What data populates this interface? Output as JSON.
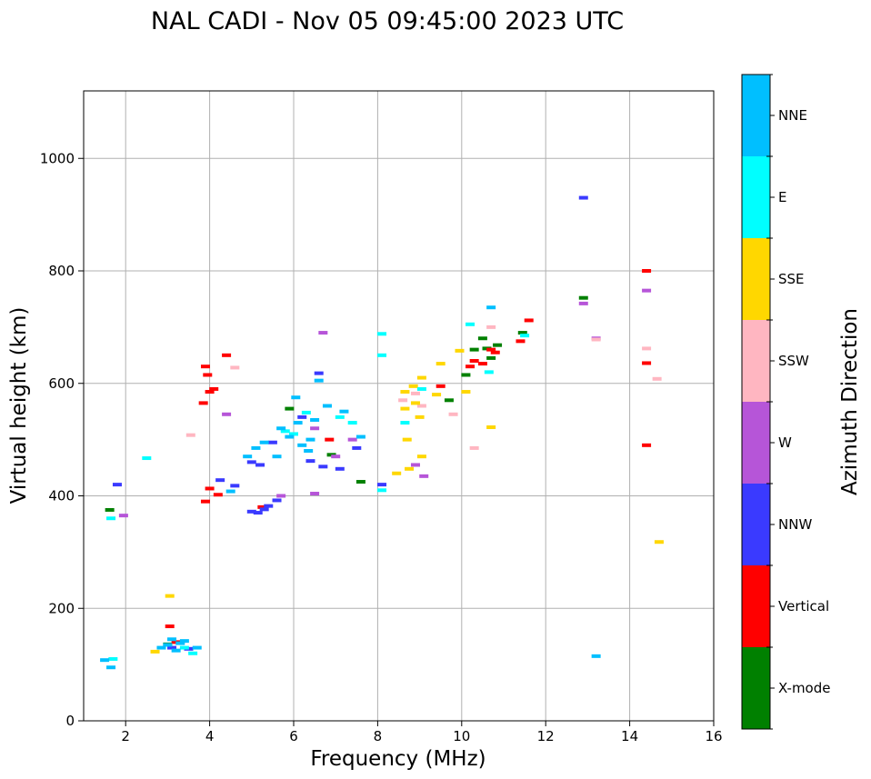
{
  "chart_data": {
    "type": "scatter",
    "title": "NAL CADI - Nov 05 09:45:00 2023 UTC",
    "xlabel": "Frequency (MHz)",
    "ylabel": "Virtual height (km)",
    "xlim": [
      1,
      16
    ],
    "ylim": [
      0,
      1120
    ],
    "xticks": [
      2,
      4,
      6,
      8,
      10,
      12,
      14,
      16
    ],
    "yticks": [
      0,
      200,
      400,
      600,
      800,
      1000
    ],
    "grid": true,
    "colorbar": {
      "label": "Azimuth Direction",
      "categories": [
        {
          "name": "X-mode",
          "color": "#008000"
        },
        {
          "name": "Vertical",
          "color": "#ff0000"
        },
        {
          "name": "NNW",
          "color": "#3a3aff"
        },
        {
          "name": "W",
          "color": "#b655d8"
        },
        {
          "name": "SSW",
          "color": "#ffb6c1"
        },
        {
          "name": "SSE",
          "color": "#ffd700"
        },
        {
          "name": "E",
          "color": "#00ffff"
        },
        {
          "name": "NNE",
          "color": "#00bfff"
        }
      ]
    },
    "series": [
      {
        "name": "X-mode",
        "points": [
          [
            1.62,
            375
          ],
          [
            3.0,
            136
          ],
          [
            5.9,
            555
          ],
          [
            6.9,
            473
          ],
          [
            7.6,
            425
          ],
          [
            9.7,
            570
          ],
          [
            10.1,
            615
          ],
          [
            10.3,
            660
          ],
          [
            10.5,
            680
          ],
          [
            10.6,
            662
          ],
          [
            10.7,
            645
          ],
          [
            10.85,
            668
          ],
          [
            11.45,
            690
          ],
          [
            12.9,
            752
          ]
        ]
      },
      {
        "name": "Vertical",
        "points": [
          [
            3.05,
            168
          ],
          [
            3.2,
            140
          ],
          [
            3.9,
            630
          ],
          [
            3.95,
            615
          ],
          [
            4.0,
            585
          ],
          [
            3.85,
            565
          ],
          [
            4.1,
            590
          ],
          [
            4.4,
            650
          ],
          [
            3.9,
            390
          ],
          [
            4.0,
            413
          ],
          [
            4.2,
            402
          ],
          [
            5.25,
            380
          ],
          [
            6.85,
            500
          ],
          [
            9.5,
            595
          ],
          [
            10.2,
            630
          ],
          [
            10.3,
            640
          ],
          [
            10.5,
            635
          ],
          [
            10.7,
            660
          ],
          [
            10.8,
            655
          ],
          [
            11.4,
            675
          ],
          [
            11.6,
            712
          ],
          [
            14.4,
            800
          ],
          [
            14.4,
            636
          ],
          [
            14.4,
            490
          ]
        ]
      },
      {
        "name": "NNW",
        "points": [
          [
            1.8,
            420
          ],
          [
            3.1,
            130
          ],
          [
            3.5,
            128
          ],
          [
            4.25,
            428
          ],
          [
            4.6,
            418
          ],
          [
            5.0,
            372
          ],
          [
            5.15,
            370
          ],
          [
            5.3,
            376
          ],
          [
            5.4,
            382
          ],
          [
            5.6,
            392
          ],
          [
            5.0,
            460
          ],
          [
            5.2,
            455
          ],
          [
            5.5,
            495
          ],
          [
            6.4,
            462
          ],
          [
            6.7,
            452
          ],
          [
            7.1,
            448
          ],
          [
            7.5,
            485
          ],
          [
            6.2,
            540
          ],
          [
            6.6,
            618
          ],
          [
            8.1,
            420
          ],
          [
            12.9,
            930
          ]
        ]
      },
      {
        "name": "W",
        "points": [
          [
            1.95,
            365
          ],
          [
            4.4,
            545
          ],
          [
            5.7,
            400
          ],
          [
            6.5,
            520
          ],
          [
            6.5,
            404
          ],
          [
            7.0,
            470
          ],
          [
            7.4,
            500
          ],
          [
            6.7,
            690
          ],
          [
            8.9,
            455
          ],
          [
            9.1,
            435
          ],
          [
            12.9,
            742
          ],
          [
            13.2,
            680
          ],
          [
            14.4,
            765
          ]
        ]
      },
      {
        "name": "SSW",
        "points": [
          [
            3.55,
            508
          ],
          [
            4.6,
            628
          ],
          [
            8.6,
            570
          ],
          [
            8.9,
            582
          ],
          [
            9.05,
            560
          ],
          [
            9.8,
            545
          ],
          [
            10.3,
            485
          ],
          [
            10.7,
            700
          ],
          [
            14.4,
            662
          ],
          [
            14.65,
            608
          ],
          [
            13.2,
            678
          ]
        ]
      },
      {
        "name": "SSE",
        "points": [
          [
            2.7,
            123
          ],
          [
            3.05,
            222
          ],
          [
            8.45,
            440
          ],
          [
            8.65,
            585
          ],
          [
            8.65,
            555
          ],
          [
            8.7,
            500
          ],
          [
            8.75,
            448
          ],
          [
            8.85,
            595
          ],
          [
            8.9,
            565
          ],
          [
            9.0,
            540
          ],
          [
            9.05,
            610
          ],
          [
            9.05,
            470
          ],
          [
            9.4,
            580
          ],
          [
            9.5,
            635
          ],
          [
            9.95,
            658
          ],
          [
            10.1,
            585
          ],
          [
            10.7,
            522
          ],
          [
            14.7,
            318
          ]
        ]
      },
      {
        "name": "E",
        "points": [
          [
            1.65,
            360
          ],
          [
            1.7,
            110
          ],
          [
            2.5,
            467
          ],
          [
            3.4,
            130
          ],
          [
            3.6,
            120
          ],
          [
            5.8,
            515
          ],
          [
            6.0,
            510
          ],
          [
            6.3,
            548
          ],
          [
            7.1,
            540
          ],
          [
            7.4,
            530
          ],
          [
            8.1,
            688
          ],
          [
            8.1,
            650
          ],
          [
            8.1,
            410
          ],
          [
            8.65,
            530
          ],
          [
            9.05,
            590
          ],
          [
            10.65,
            620
          ],
          [
            11.5,
            685
          ],
          [
            10.2,
            705
          ]
        ]
      },
      {
        "name": "NNE",
        "points": [
          [
            1.5,
            108
          ],
          [
            1.65,
            95
          ],
          [
            2.85,
            130
          ],
          [
            3.0,
            135
          ],
          [
            3.1,
            145
          ],
          [
            3.2,
            125
          ],
          [
            3.3,
            138
          ],
          [
            3.4,
            142
          ],
          [
            3.7,
            130
          ],
          [
            4.5,
            408
          ],
          [
            4.9,
            470
          ],
          [
            5.1,
            485
          ],
          [
            5.3,
            495
          ],
          [
            5.6,
            470
          ],
          [
            5.7,
            520
          ],
          [
            5.9,
            505
          ],
          [
            6.05,
            575
          ],
          [
            6.1,
            530
          ],
          [
            6.2,
            490
          ],
          [
            6.35,
            480
          ],
          [
            6.4,
            500
          ],
          [
            6.5,
            535
          ],
          [
            6.6,
            605
          ],
          [
            6.8,
            560
          ],
          [
            7.2,
            550
          ],
          [
            7.6,
            505
          ],
          [
            10.7,
            735
          ],
          [
            13.2,
            115
          ]
        ]
      }
    ]
  }
}
